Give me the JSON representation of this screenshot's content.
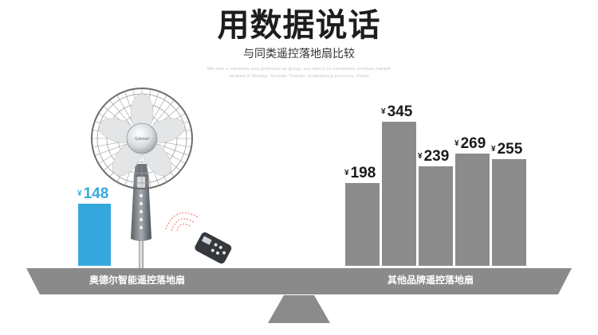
{
  "header": {
    "title": "用数据说话",
    "subtitle": "与同类遥控落地扇比较",
    "caption_line1": "We own a cohesive and professional group, our aim is to constantly enclose market",
    "caption_line2": "located in Rongqi, Shunde, Foshan, Guangdong province, China"
  },
  "product": {
    "brand_badge": "Gdorsel"
  },
  "scale": {
    "left_label": "奥德尔智能遥控落地扇",
    "right_label": "其他品牌遥控落地扇"
  },
  "chart_data": {
    "type": "bar",
    "currency_symbol": "¥",
    "categories": [
      "奥德尔智能遥控落地扇",
      "其他品牌遥控落地扇",
      "其他品牌遥控落地扇",
      "其他品牌遥控落地扇",
      "其他品牌遥控落地扇",
      "其他品牌遥控落地扇"
    ],
    "values": [
      148,
      198,
      345,
      239,
      269,
      255
    ],
    "value_labels": [
      "148",
      "198",
      "345",
      "239",
      "269",
      "255"
    ],
    "colors": {
      "ours": "#34a8dd",
      "others": "#8b8b8b",
      "scale": "#8a8a8a"
    }
  }
}
